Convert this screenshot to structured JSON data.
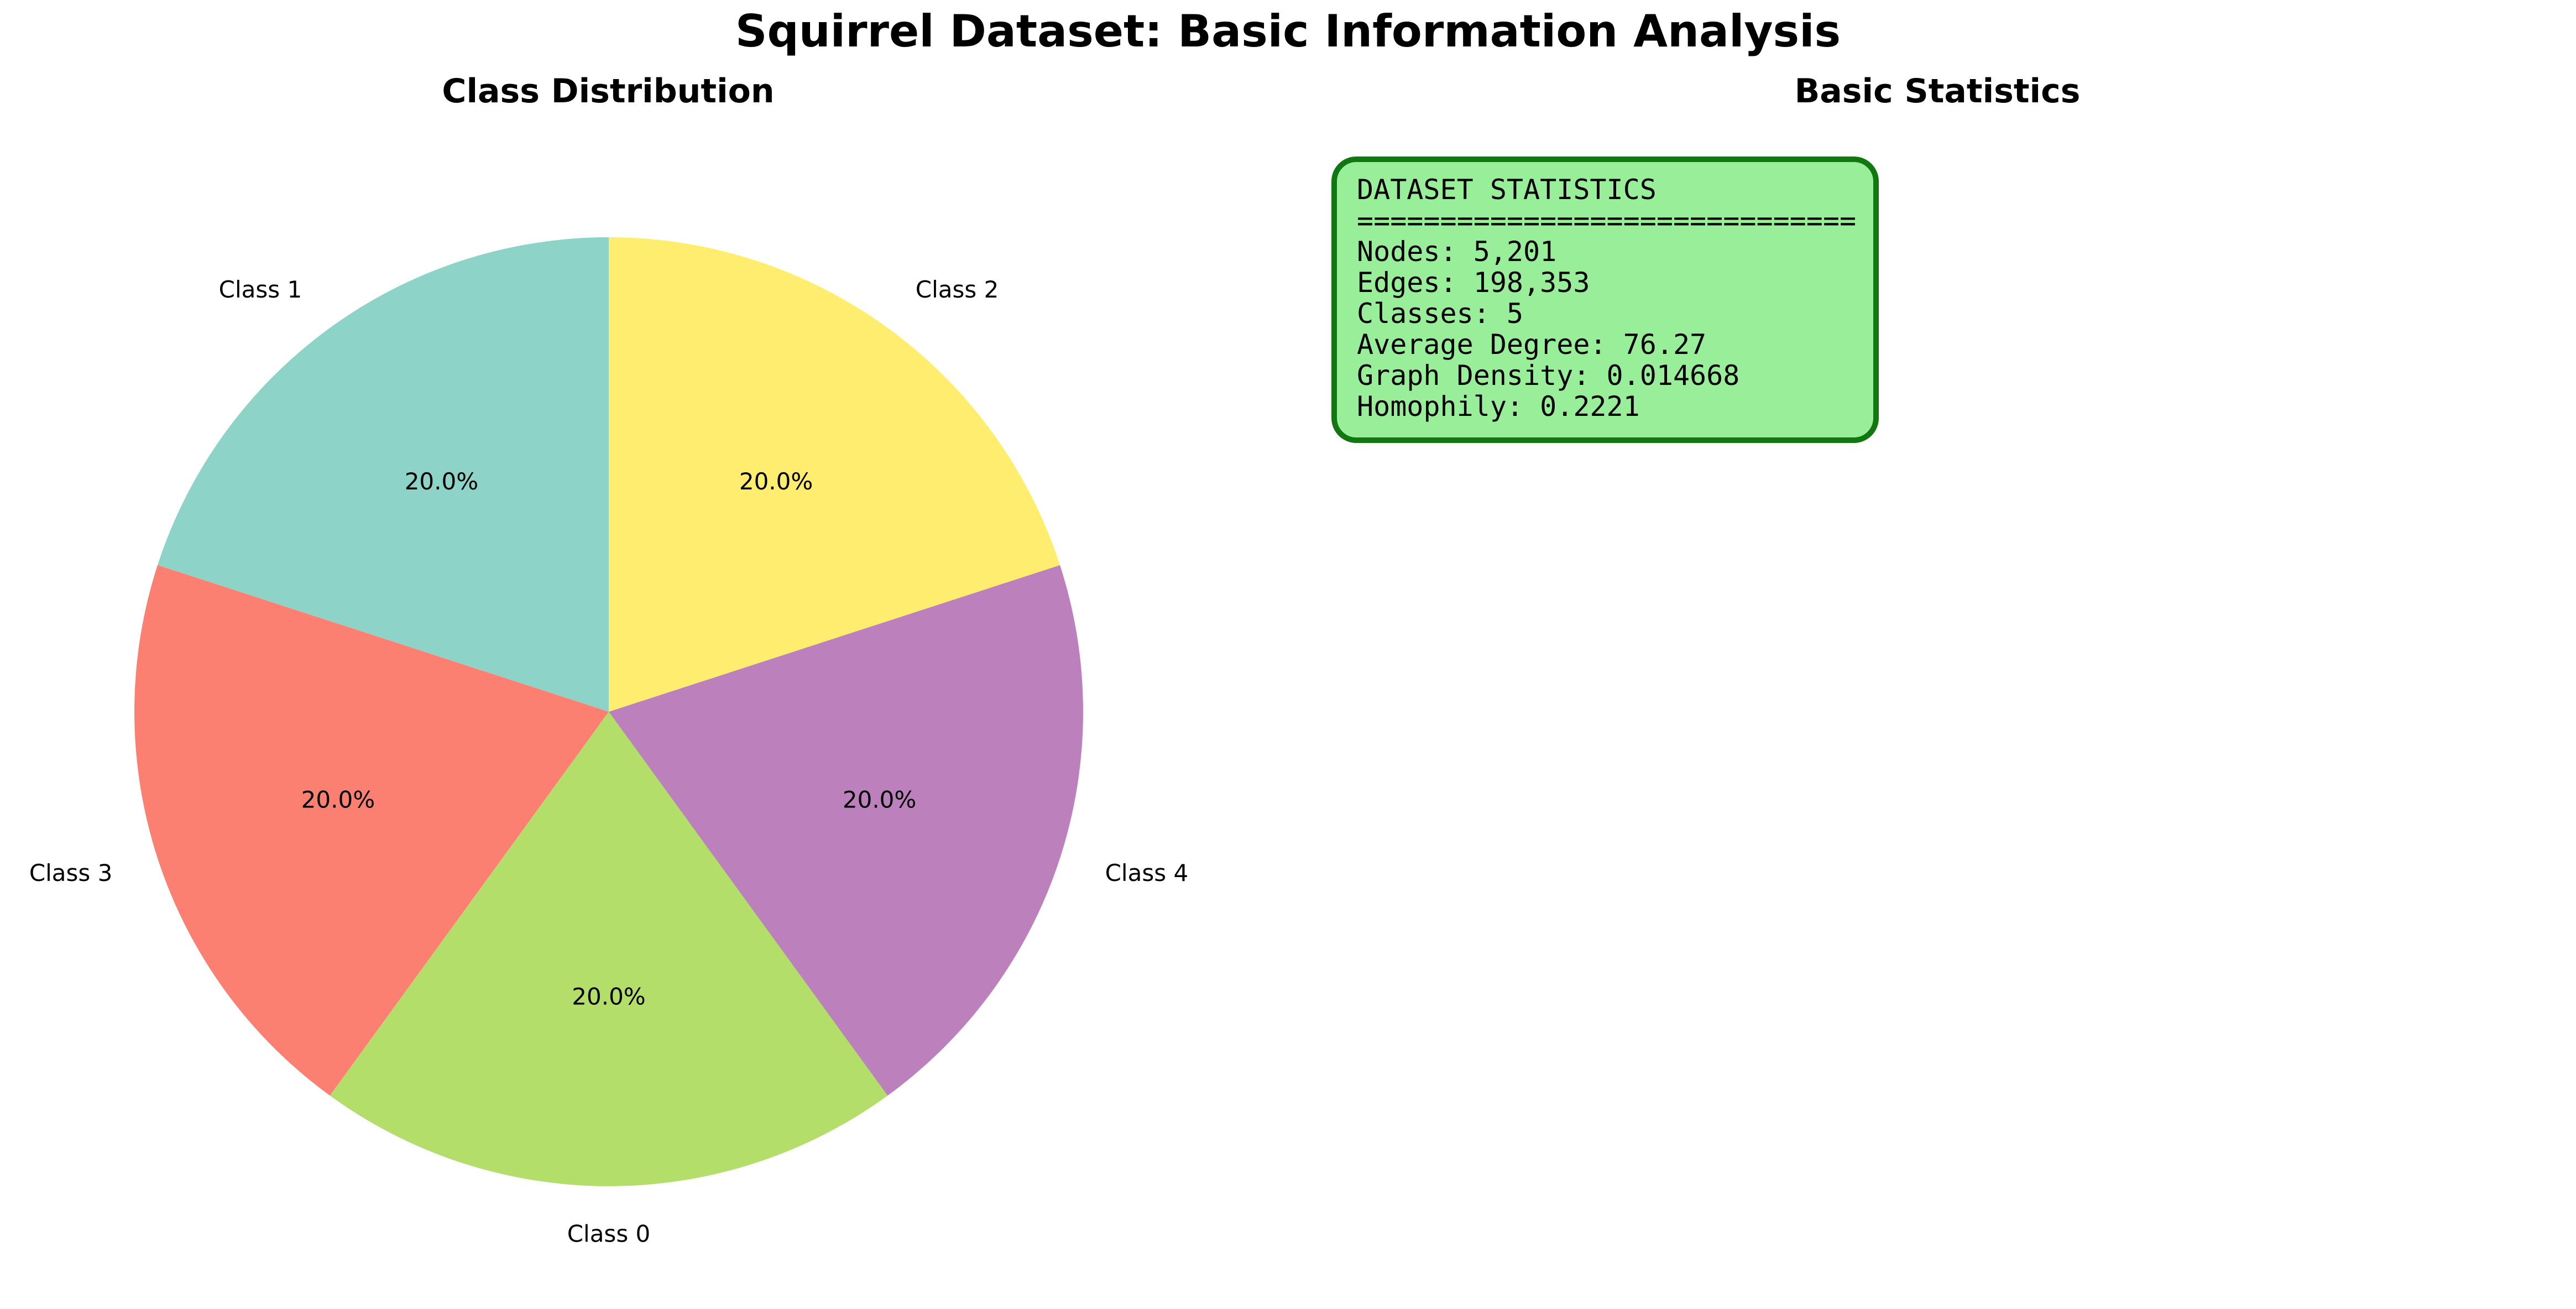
{
  "title": "Squirrel Dataset: Basic Information Analysis",
  "chart_data": [
    {
      "type": "pie",
      "title": "Class Distribution",
      "categories": [
        "Class 1",
        "Class 3",
        "Class 0",
        "Class 4",
        "Class 2"
      ],
      "values": [
        20.0,
        20.0,
        20.0,
        20.0,
        20.0
      ],
      "pct_labels": [
        "20.0%",
        "20.0%",
        "20.0%",
        "20.0%",
        "20.0%"
      ],
      "colors": [
        "#8dd3c7",
        "#fb8072",
        "#b3de69",
        "#bc80bd",
        "#ffed6f"
      ],
      "start_angle_deg": 90,
      "direction": "counterclockwise"
    },
    {
      "type": "table",
      "title": "Basic Statistics",
      "lines": [
        "DATASET STATISTICS",
        "==============================",
        "Nodes: 5,201",
        "Edges: 198,353",
        "Classes: 5",
        "Average Degree: 76.27",
        "Graph Density: 0.014668",
        "Homophily: 0.2221"
      ],
      "box_facecolor": "#99ee99",
      "box_edgecolor": "#117711"
    }
  ]
}
